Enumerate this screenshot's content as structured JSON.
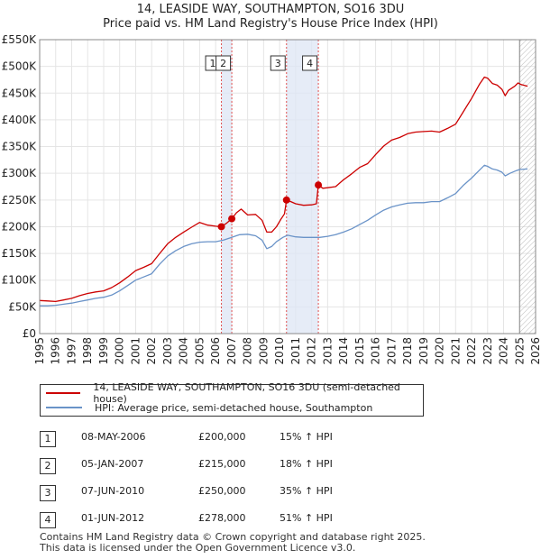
{
  "title_line1": "14, LEASIDE WAY, SOUTHAMPTON, SO16 3DU",
  "title_line2": "Price paid vs. HM Land Registry's House Price Index (HPI)",
  "chart_data": {
    "type": "line",
    "xlim": [
      1995,
      2026
    ],
    "ylim": [
      0,
      550000
    ],
    "y_ticks": [
      0,
      50000,
      100000,
      150000,
      200000,
      250000,
      300000,
      350000,
      400000,
      450000,
      500000,
      550000
    ],
    "y_tick_labels": [
      "£0",
      "£50K",
      "£100K",
      "£150K",
      "£200K",
      "£250K",
      "£300K",
      "£350K",
      "£400K",
      "£450K",
      "£500K",
      "£550K"
    ],
    "x_ticks": [
      1995,
      1996,
      1997,
      1998,
      1999,
      2000,
      2001,
      2002,
      2003,
      2004,
      2005,
      2006,
      2007,
      2008,
      2009,
      2010,
      2011,
      2012,
      2013,
      2014,
      2015,
      2016,
      2017,
      2018,
      2019,
      2020,
      2021,
      2022,
      2023,
      2024,
      2025,
      2026
    ],
    "grid": true,
    "shaded_spans": [
      [
        2006.36,
        2007.01
      ],
      [
        2010.43,
        2012.42
      ]
    ],
    "future_hatch_start": 2025.0,
    "series": [
      {
        "name": "14, LEASIDE WAY, SOUTHAMPTON, SO16 3DU (semi-detached house)",
        "color": "#cc0000",
        "points": [
          [
            1995.0,
            62000
          ],
          [
            1995.5,
            61000
          ],
          [
            1996.0,
            60000
          ],
          [
            1996.5,
            63000
          ],
          [
            1997.0,
            66000
          ],
          [
            1997.5,
            71000
          ],
          [
            1998.0,
            75000
          ],
          [
            1998.5,
            78000
          ],
          [
            1999.0,
            80000
          ],
          [
            1999.5,
            86000
          ],
          [
            2000.0,
            95000
          ],
          [
            2000.5,
            106000
          ],
          [
            2001.0,
            118000
          ],
          [
            2001.5,
            124000
          ],
          [
            2002.0,
            131000
          ],
          [
            2002.5,
            150000
          ],
          [
            2003.0,
            168000
          ],
          [
            2003.5,
            180000
          ],
          [
            2004.0,
            190000
          ],
          [
            2004.5,
            199000
          ],
          [
            2005.0,
            208000
          ],
          [
            2005.5,
            203000
          ],
          [
            2006.0,
            201000
          ],
          [
            2006.36,
            200000
          ],
          [
            2006.7,
            207000
          ],
          [
            2007.01,
            215000
          ],
          [
            2007.3,
            226000
          ],
          [
            2007.6,
            233000
          ],
          [
            2008.0,
            222000
          ],
          [
            2008.5,
            223000
          ],
          [
            2008.9,
            212000
          ],
          [
            2009.2,
            190000
          ],
          [
            2009.5,
            190000
          ],
          [
            2009.8,
            200000
          ],
          [
            2010.1,
            215000
          ],
          [
            2010.3,
            224000
          ],
          [
            2010.43,
            250000
          ],
          [
            2010.7,
            247000
          ],
          [
            2011.0,
            243000
          ],
          [
            2011.5,
            240000
          ],
          [
            2012.0,
            241000
          ],
          [
            2012.3,
            243000
          ],
          [
            2012.42,
            278000
          ],
          [
            2012.7,
            272000
          ],
          [
            2013.0,
            273000
          ],
          [
            2013.5,
            275000
          ],
          [
            2014.0,
            288000
          ],
          [
            2014.5,
            299000
          ],
          [
            2015.0,
            311000
          ],
          [
            2015.5,
            318000
          ],
          [
            2016.0,
            335000
          ],
          [
            2016.5,
            351000
          ],
          [
            2017.0,
            362000
          ],
          [
            2017.5,
            367000
          ],
          [
            2018.0,
            374000
          ],
          [
            2018.5,
            377000
          ],
          [
            2019.0,
            378000
          ],
          [
            2019.5,
            379000
          ],
          [
            2020.0,
            377000
          ],
          [
            2020.5,
            384000
          ],
          [
            2021.0,
            392000
          ],
          [
            2021.5,
            416000
          ],
          [
            2022.0,
            440000
          ],
          [
            2022.5,
            467000
          ],
          [
            2022.8,
            480000
          ],
          [
            2023.0,
            478000
          ],
          [
            2023.3,
            468000
          ],
          [
            2023.6,
            465000
          ],
          [
            2023.9,
            457000
          ],
          [
            2024.1,
            445000
          ],
          [
            2024.3,
            455000
          ],
          [
            2024.7,
            463000
          ],
          [
            2024.9,
            469000
          ],
          [
            2025.1,
            466000
          ],
          [
            2025.5,
            463000
          ]
        ]
      },
      {
        "name": "HPI: Average price, semi-detached house, Southampton",
        "color": "#6a93c8",
        "points": [
          [
            1995.0,
            52000
          ],
          [
            1995.5,
            52000
          ],
          [
            1996.0,
            53000
          ],
          [
            1996.5,
            55000
          ],
          [
            1997.0,
            57000
          ],
          [
            1997.5,
            60000
          ],
          [
            1998.0,
            63000
          ],
          [
            1998.5,
            66000
          ],
          [
            1999.0,
            68000
          ],
          [
            1999.5,
            72000
          ],
          [
            2000.0,
            80000
          ],
          [
            2000.5,
            90000
          ],
          [
            2001.0,
            100000
          ],
          [
            2001.5,
            106000
          ],
          [
            2002.0,
            112000
          ],
          [
            2002.5,
            130000
          ],
          [
            2003.0,
            145000
          ],
          [
            2003.5,
            155000
          ],
          [
            2004.0,
            163000
          ],
          [
            2004.5,
            168000
          ],
          [
            2005.0,
            171000
          ],
          [
            2005.5,
            172000
          ],
          [
            2006.0,
            172000
          ],
          [
            2006.5,
            175000
          ],
          [
            2007.0,
            180000
          ],
          [
            2007.5,
            185000
          ],
          [
            2008.0,
            186000
          ],
          [
            2008.5,
            183000
          ],
          [
            2008.9,
            175000
          ],
          [
            2009.2,
            159000
          ],
          [
            2009.5,
            163000
          ],
          [
            2009.8,
            172000
          ],
          [
            2010.2,
            180000
          ],
          [
            2010.5,
            184000
          ],
          [
            2011.0,
            181000
          ],
          [
            2011.5,
            180000
          ],
          [
            2012.0,
            180000
          ],
          [
            2012.5,
            180000
          ],
          [
            2013.0,
            182000
          ],
          [
            2013.5,
            185000
          ],
          [
            2014.0,
            190000
          ],
          [
            2014.5,
            196000
          ],
          [
            2015.0,
            204000
          ],
          [
            2015.5,
            212000
          ],
          [
            2016.0,
            222000
          ],
          [
            2016.5,
            231000
          ],
          [
            2017.0,
            237000
          ],
          [
            2017.5,
            241000
          ],
          [
            2018.0,
            244000
          ],
          [
            2018.5,
            245000
          ],
          [
            2019.0,
            245000
          ],
          [
            2019.5,
            247000
          ],
          [
            2020.0,
            247000
          ],
          [
            2020.5,
            254000
          ],
          [
            2021.0,
            262000
          ],
          [
            2021.5,
            278000
          ],
          [
            2022.0,
            291000
          ],
          [
            2022.5,
            306000
          ],
          [
            2022.8,
            315000
          ],
          [
            2023.0,
            313000
          ],
          [
            2023.3,
            308000
          ],
          [
            2023.6,
            306000
          ],
          [
            2023.9,
            302000
          ],
          [
            2024.1,
            295000
          ],
          [
            2024.4,
            300000
          ],
          [
            2024.8,
            305000
          ],
          [
            2025.0,
            307000
          ],
          [
            2025.5,
            308000
          ]
        ]
      }
    ],
    "sales": [
      {
        "label": "1",
        "x": 2006.36,
        "y": 200000
      },
      {
        "label": "2",
        "x": 2007.01,
        "y": 215000
      },
      {
        "label": "3",
        "x": 2010.43,
        "y": 250000
      },
      {
        "label": "4",
        "x": 2012.42,
        "y": 278000
      }
    ]
  },
  "legend": [
    {
      "label": "14, LEASIDE WAY, SOUTHAMPTON, SO16 3DU (semi-detached house)",
      "color": "#cc0000"
    },
    {
      "label": "HPI: Average price, semi-detached house, Southampton",
      "color": "#6a93c8"
    }
  ],
  "sales_table": [
    {
      "num": "1",
      "date": "08-MAY-2006",
      "price": "£200,000",
      "hpi": "15% ↑ HPI"
    },
    {
      "num": "2",
      "date": "05-JAN-2007",
      "price": "£215,000",
      "hpi": "18% ↑ HPI"
    },
    {
      "num": "3",
      "date": "07-JUN-2010",
      "price": "£250,000",
      "hpi": "35% ↑ HPI"
    },
    {
      "num": "4",
      "date": "01-JUN-2012",
      "price": "£278,000",
      "hpi": "51% ↑ HPI"
    }
  ],
  "footer_line1": "Contains HM Land Registry data © Crown copyright and database right 2025.",
  "footer_line2": "This data is licensed under the Open Government Licence v3.0."
}
